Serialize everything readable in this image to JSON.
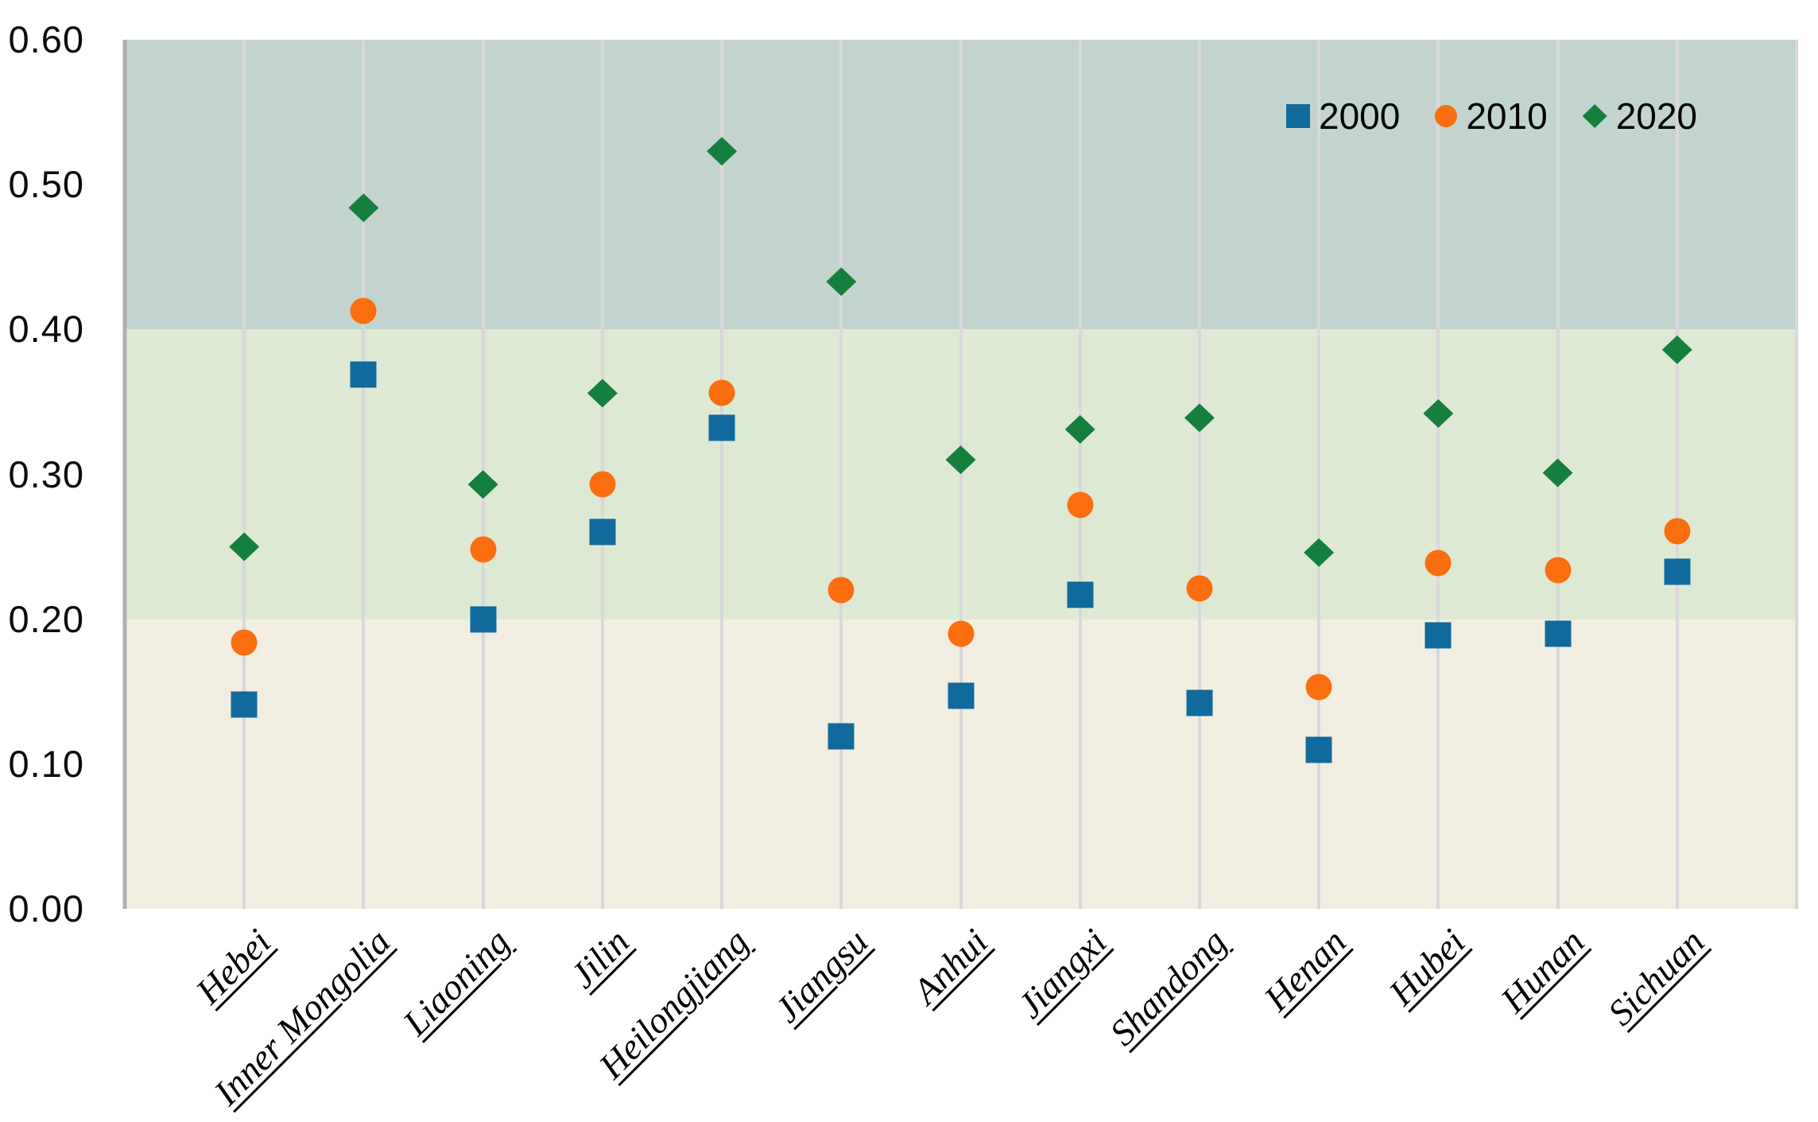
{
  "chart_data": {
    "type": "scatter",
    "title": "",
    "xlabel": "",
    "ylabel": "",
    "categories": [
      "Hebei",
      "Inner Mongolia",
      "Liaoning",
      "Jilin",
      "Heilongjiang",
      "Jiangsu",
      "Anhui",
      "Jiangxi",
      "Shandong",
      "Henan",
      "Hubei",
      "Hunan",
      "Sichuan"
    ],
    "series": [
      {
        "name": "2000",
        "marker": "square",
        "color": "#116a9d",
        "values": [
          0.141,
          0.369,
          0.2,
          0.26,
          0.332,
          0.119,
          0.147,
          0.217,
          0.142,
          0.11,
          0.189,
          0.19,
          0.233
        ]
      },
      {
        "name": "2010",
        "marker": "circle",
        "color": "#fa6e10",
        "values": [
          0.184,
          0.413,
          0.248,
          0.293,
          0.356,
          0.22,
          0.19,
          0.279,
          0.221,
          0.153,
          0.239,
          0.234,
          0.261
        ]
      },
      {
        "name": "2020",
        "marker": "diamond",
        "color": "#157f3d",
        "values": [
          0.25,
          0.484,
          0.293,
          0.356,
          0.523,
          0.433,
          0.31,
          0.331,
          0.339,
          0.246,
          0.342,
          0.301,
          0.386
        ]
      }
    ],
    "y_axis": {
      "min": 0.0,
      "max": 0.6,
      "step": 0.1,
      "tick_labels": [
        "0.00",
        "0.10",
        "0.20",
        "0.30",
        "0.40",
        "0.50",
        "0.60"
      ]
    },
    "x_axis": {
      "label_rotation_deg": -45,
      "label_style": "italic-serif-underline"
    },
    "bands": [
      {
        "from": 0.0,
        "to": 0.2,
        "color": "#f1eee1"
      },
      {
        "from": 0.2,
        "to": 0.4,
        "color": "#dee9d3"
      },
      {
        "from": 0.4,
        "to": 0.6,
        "color": "#c3d4ce"
      }
    ],
    "grid": "vertical",
    "gridline_color": "#d8d8da",
    "axis_line_color": "#aeafb3",
    "legend_position": "top-right",
    "legend_entries": [
      "2000",
      "2010",
      "2020"
    ]
  }
}
